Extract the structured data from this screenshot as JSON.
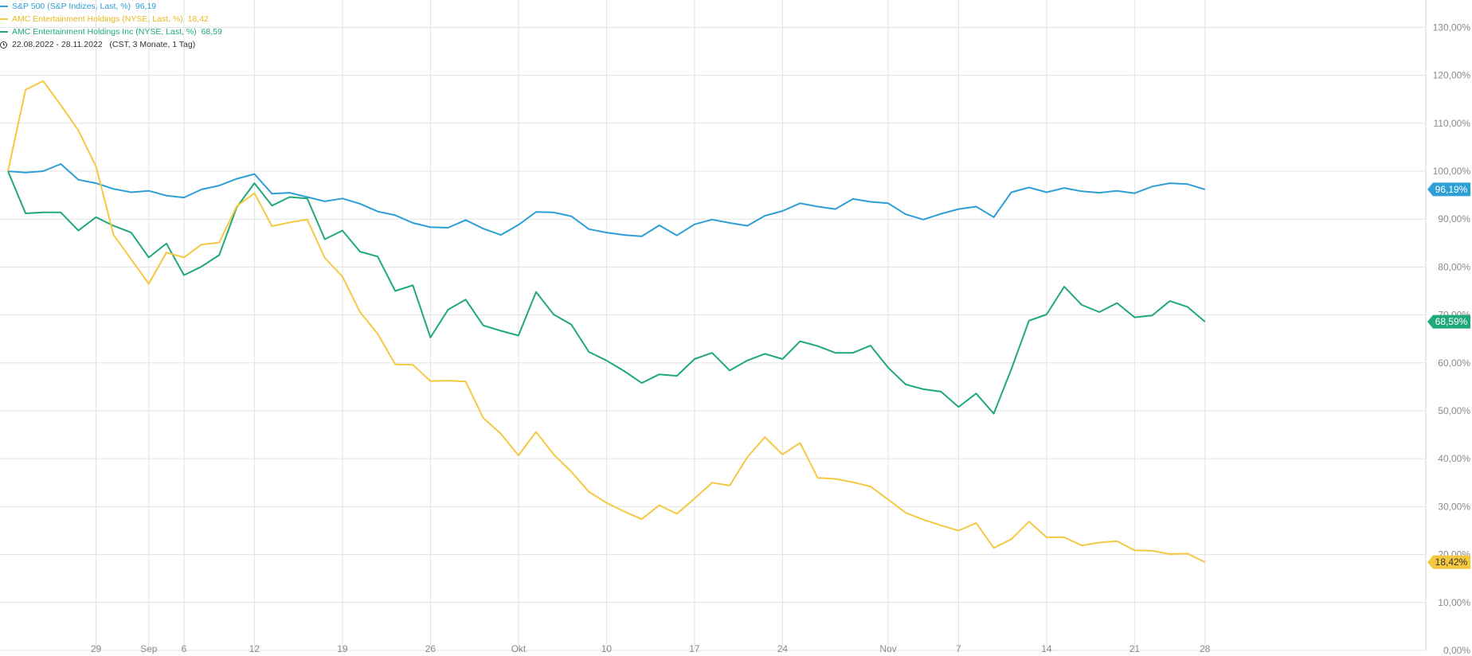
{
  "legend": {
    "entries": [
      {
        "label": "S&P 500 (S&P Indizes, Last, %)",
        "value": "96,19",
        "color": "#2e9fd6"
      },
      {
        "label": "AMC Entertainment Holdings (NYSE, Last, %)",
        "value": "18,42",
        "color": "#f5c842"
      },
      {
        "label": "AMC Entertainment Holdings Inc (NYSE, Last, %)",
        "value": "68,59",
        "color": "#1fa97a"
      }
    ],
    "date_range": "22.08.2022 - 28.11.2022",
    "date_detail": "(CST, 3 Monate, 1 Tag)",
    "clock_icon": "clock-icon"
  },
  "chart_data": {
    "type": "line",
    "x": [
      0,
      1,
      2,
      3,
      4,
      5,
      6,
      7,
      8,
      9,
      10,
      11,
      12,
      13,
      14,
      15,
      16,
      17,
      18,
      19,
      20,
      21,
      22,
      23,
      24,
      25,
      26,
      27,
      28,
      29,
      30,
      31,
      32,
      33,
      34,
      35,
      36,
      37,
      38,
      39,
      40,
      41,
      42,
      43,
      44,
      45,
      46,
      47,
      48,
      49,
      50,
      51,
      52,
      53,
      54,
      55,
      56,
      57,
      58,
      59,
      60,
      61,
      62,
      63,
      64,
      65,
      66,
      67,
      68
    ],
    "x_tick_labels": [
      {
        "index": 5,
        "label": "29"
      },
      {
        "index": 8,
        "label": "Sep"
      },
      {
        "index": 10,
        "label": "6"
      },
      {
        "index": 14,
        "label": "12"
      },
      {
        "index": 19,
        "label": "19"
      },
      {
        "index": 24,
        "label": "26"
      },
      {
        "index": 29,
        "label": "Okt"
      },
      {
        "index": 34,
        "label": "10"
      },
      {
        "index": 39,
        "label": "17"
      },
      {
        "index": 44,
        "label": "24"
      },
      {
        "index": 50,
        "label": "Nov"
      },
      {
        "index": 54,
        "label": "7"
      },
      {
        "index": 59,
        "label": "14"
      },
      {
        "index": 64,
        "label": "21"
      },
      {
        "index": 68,
        "label": "28"
      }
    ],
    "ylim": [
      0,
      135
    ],
    "y_ticks": [
      0,
      10,
      20,
      30,
      40,
      50,
      60,
      70,
      80,
      90,
      100,
      110,
      120,
      130
    ],
    "y_tick_labels": [
      "0,00%",
      "10,00%",
      "20,00%",
      "30,00%",
      "40,00%",
      "50,00%",
      "60,00%",
      "70,00%",
      "80,00%",
      "90,00%",
      "100,00%",
      "110,00%",
      "120,00%",
      "130,00%"
    ],
    "grid": true,
    "series": [
      {
        "name": "S&P 500 (S&P Indizes, Last, %)",
        "color": "#2e9fd6",
        "end_label": "96,19%",
        "values": [
          100,
          99.7,
          100,
          101.5,
          98.2,
          97.5,
          96.3,
          95.6,
          95.9,
          94.9,
          94.5,
          96.2,
          97,
          98.4,
          99.4,
          95.3,
          95.5,
          94.6,
          93.7,
          94.3,
          93.2,
          91.6,
          90.8,
          89.2,
          88.3,
          88.2,
          89.8,
          88,
          86.7,
          88.8,
          91.5,
          91.4,
          90.6,
          87.9,
          87.2,
          86.7,
          86.4,
          88.7,
          86.6,
          88.9,
          89.9,
          89.2,
          88.6,
          90.7,
          91.7,
          93.3,
          92.6,
          92.1,
          94.2,
          93.6,
          93.3,
          91,
          89.9,
          91.1,
          92.1,
          92.6,
          90.4,
          95.6,
          96.6,
          95.6,
          96.5,
          95.8,
          95.5,
          95.9,
          95.4,
          96.8,
          97.5,
          97.3,
          96.19
        ]
      },
      {
        "name": "AMC Entertainment Holdings (NYSE, Last, %)",
        "color": "#f5c842",
        "end_label": "18,42%",
        "values": [
          100,
          117,
          118.8,
          113.8,
          108.5,
          101,
          86.7,
          81.6,
          76.5,
          83,
          82,
          84.7,
          85.1,
          92.7,
          95.4,
          88.5,
          89.3,
          89.9,
          81.9,
          78,
          70.6,
          66.1,
          59.7,
          59.6,
          56.2,
          56.3,
          56.1,
          48.5,
          45.2,
          40.7,
          45.6,
          40.9,
          37.3,
          33.1,
          30.8,
          29,
          27.4,
          30.3,
          28.5,
          31.7,
          35,
          34.4,
          40.3,
          44.5,
          40.9,
          43.3,
          36,
          35.8,
          35.1,
          34.2,
          31.5,
          28.7,
          27.3,
          26.1,
          25,
          26.6,
          21.4,
          23.2,
          26.9,
          23.6,
          23.6,
          21.9,
          22.5,
          22.8,
          20.9,
          20.8,
          20.1,
          20.2,
          18.42
        ]
      },
      {
        "name": "AMC Entertainment Holdings Inc (NYSE, Last, %)",
        "color": "#1fa97a",
        "end_label": "68,59%",
        "values": [
          100,
          91.2,
          91.4,
          91.4,
          87.6,
          90.4,
          88.6,
          87.2,
          82,
          84.9,
          78.3,
          80.1,
          82.5,
          92.5,
          97.5,
          92.8,
          94.6,
          94.3,
          85.8,
          87.6,
          83.2,
          82.2,
          75,
          76.2,
          65.3,
          71.1,
          73.2,
          67.8,
          66.7,
          65.7,
          74.8,
          70.1,
          68,
          62.3,
          60.5,
          58.3,
          55.8,
          57.6,
          57.3,
          60.8,
          62.1,
          58.4,
          60.5,
          61.9,
          60.8,
          64.5,
          63.5,
          62.1,
          62.1,
          63.6,
          59,
          55.5,
          54.5,
          54,
          50.8,
          53.6,
          49.4,
          58.7,
          68.8,
          70.1,
          75.9,
          72.1,
          70.6,
          72.5,
          69.5,
          69.9,
          72.9,
          71.7,
          68.59
        ]
      }
    ]
  }
}
